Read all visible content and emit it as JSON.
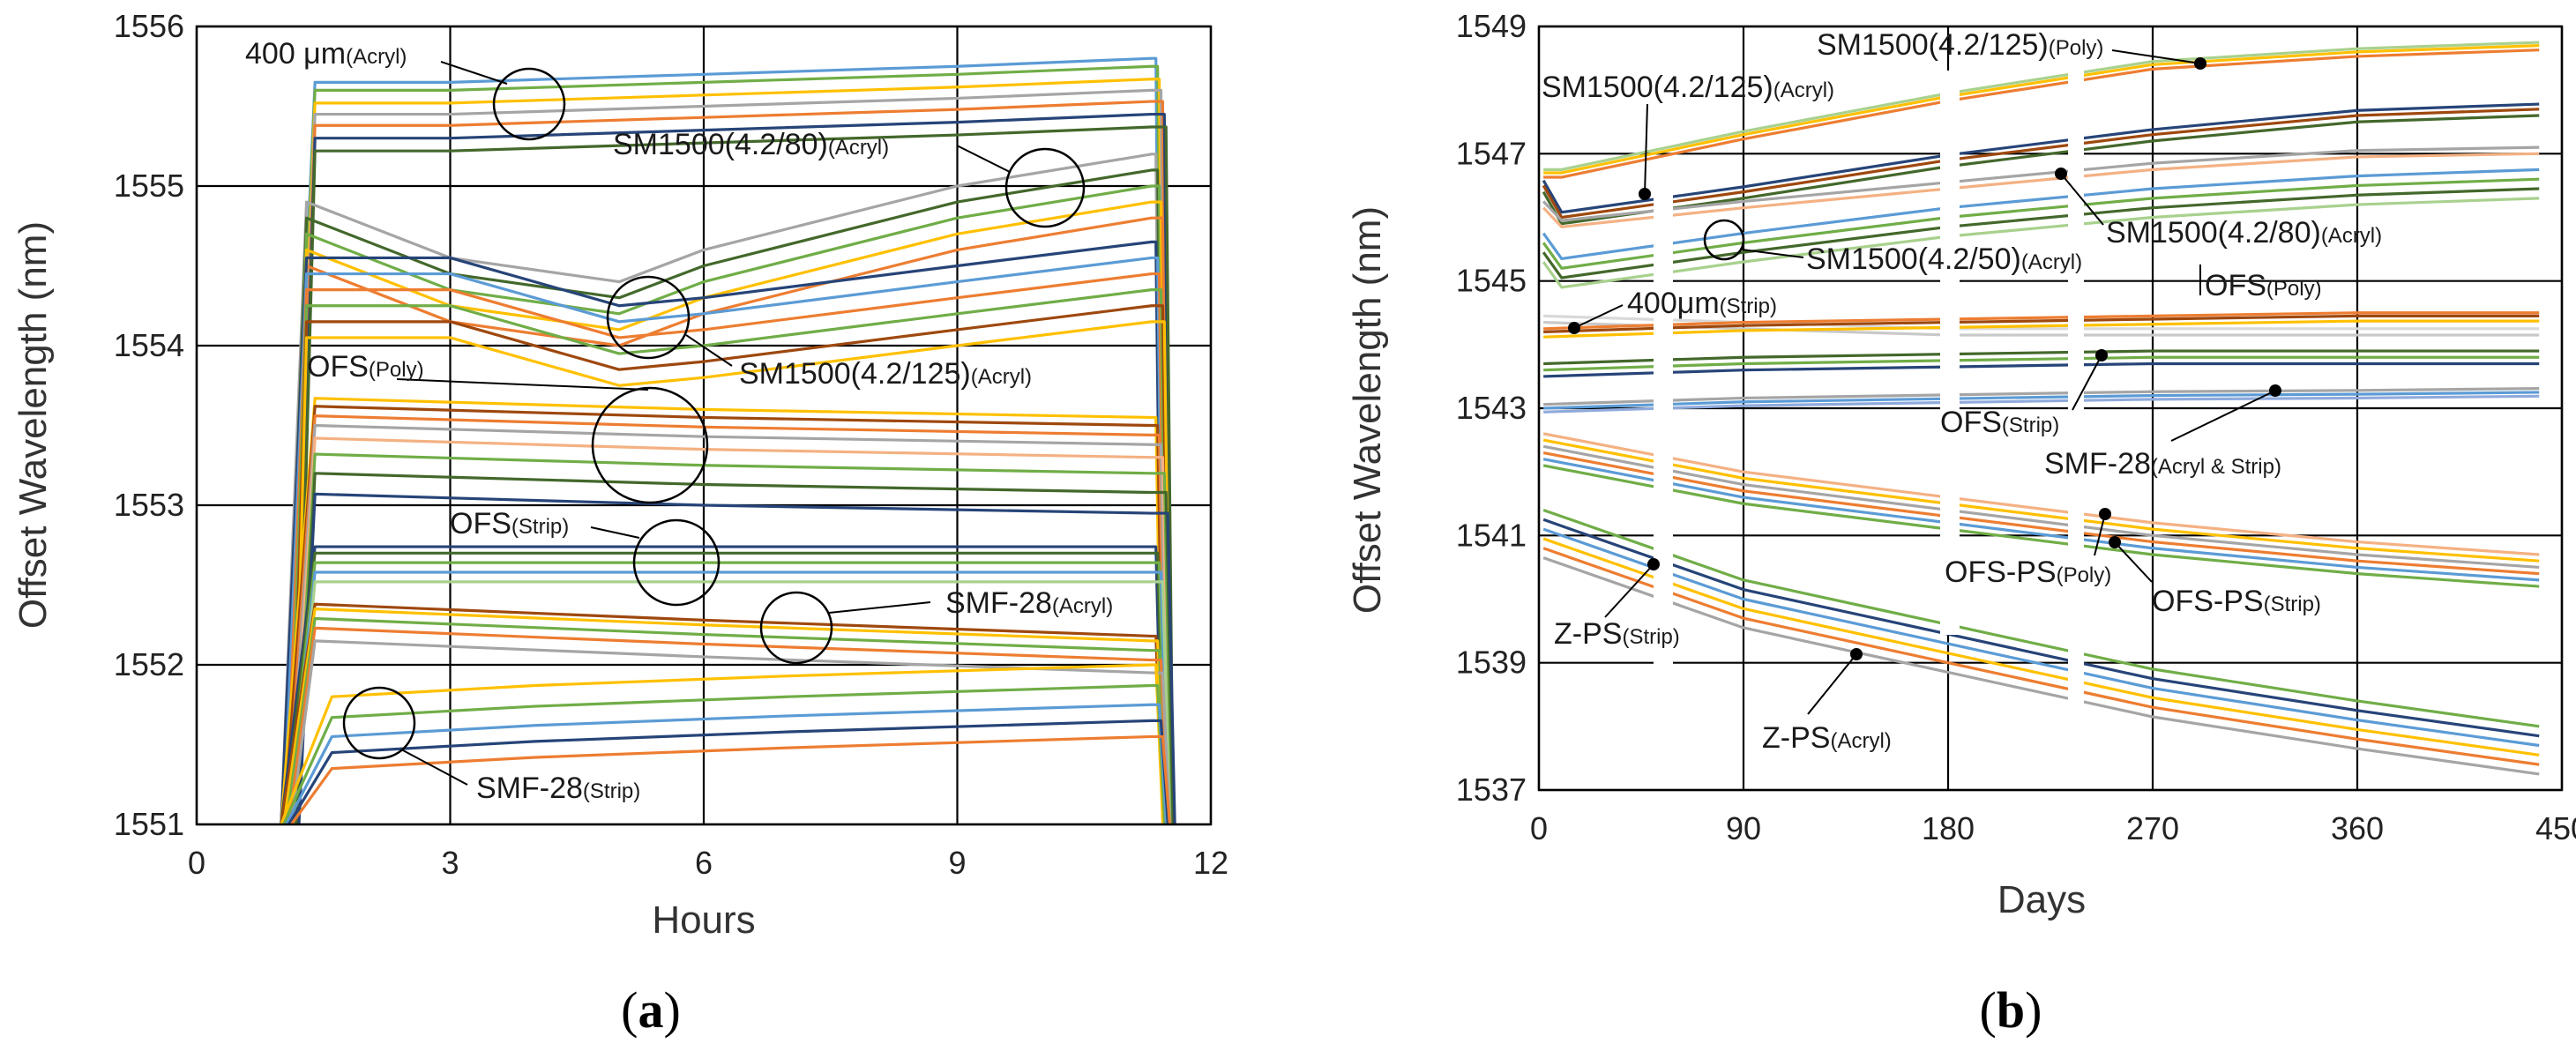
{
  "chart_data": [
    {
      "panel": "(a)",
      "panel_letter": "a",
      "type": "line",
      "xlabel": "Hours",
      "ylabel": "Offset Wavelength (nm)",
      "xlim": [
        0,
        12
      ],
      "ylim": [
        1551,
        1556
      ],
      "xticks": [
        "0",
        "3",
        "6",
        "9",
        "12"
      ],
      "yticks": [
        "1551",
        "1552",
        "1553",
        "1554",
        "1555",
        "1556"
      ],
      "grid": true,
      "legend": "none (inline annotations)",
      "annotations": [
        {
          "main": "400 μm",
          "sub": "(Acryl)"
        },
        {
          "main": "SM1500(4.2/80)",
          "sub": "(Acryl)"
        },
        {
          "main": "SM1500(4.2/125)",
          "sub": "(Acryl)"
        },
        {
          "main": "OFS",
          "sub": "(Poly)"
        },
        {
          "main": "OFS",
          "sub": "(Strip)"
        },
        {
          "main": "SMF-28",
          "sub": "(Acryl)"
        },
        {
          "main": "SMF-28",
          "sub": "(Strip)"
        }
      ],
      "groups": [
        {
          "name": "400 μm (Acryl)",
          "points": [
            [
              1.4,
              1555.6
            ],
            [
              3,
              1555.6
            ],
            [
              6,
              1555.65
            ],
            [
              9,
              1555.7
            ],
            [
              11.3,
              1555.75
            ]
          ],
          "offsets": [
            0.05,
            0,
            -0.08,
            -0.15,
            -0.22,
            -0.3,
            -0.38
          ],
          "colors": [
            "#5b9bd5",
            "#70ad47",
            "#ffc000",
            "#a5a5a5",
            "#ed7d31",
            "#264478",
            "#43682b"
          ]
        },
        {
          "name": "SM1500(4.2/80) (Acryl)",
          "points": [
            [
              1.3,
              1554.8
            ],
            [
              3,
              1554.45
            ],
            [
              5,
              1554.3
            ],
            [
              6,
              1554.5
            ],
            [
              9,
              1554.9
            ],
            [
              11.3,
              1555.1
            ]
          ],
          "offsets": [
            0.1,
            0,
            -0.1,
            -0.2,
            -0.3
          ],
          "colors": [
            "#a5a5a5",
            "#43682b",
            "#70ad47",
            "#ffc000",
            "#ed7d31"
          ]
        },
        {
          "name": "SM1500(4.2/125) (Acryl)",
          "points": [
            [
              1.3,
              1554.35
            ],
            [
              3,
              1554.35
            ],
            [
              5,
              1554.05
            ],
            [
              6,
              1554.1
            ],
            [
              9,
              1554.3
            ],
            [
              11.3,
              1554.45
            ]
          ],
          "offsets": [
            0.2,
            0.1,
            0,
            -0.1,
            -0.2,
            -0.3
          ],
          "colors": [
            "#264478",
            "#5b9bd5",
            "#ed7d31",
            "#70ad47",
            "#9e480e",
            "#ffc000"
          ]
        },
        {
          "name": "OFS (Poly)",
          "points": [
            [
              1.4,
              1553.62
            ],
            [
              6,
              1553.55
            ],
            [
              11.3,
              1553.5
            ]
          ],
          "offsets": [
            0.05,
            0,
            -0.06,
            -0.12,
            -0.2,
            -0.3,
            -0.42,
            -0.55
          ],
          "colors": [
            "#ffc000",
            "#9e480e",
            "#ed7d31",
            "#a5a5a5",
            "#f4b183",
            "#70ad47",
            "#43682b",
            "#264478"
          ]
        },
        {
          "name": "OFS (Strip)",
          "points": [
            [
              1.4,
              1552.72
            ],
            [
              6,
              1552.72
            ],
            [
              11.3,
              1552.72
            ]
          ],
          "offsets": [
            0.02,
            -0.02,
            -0.08,
            -0.14,
            -0.2
          ],
          "colors": [
            "#264478",
            "#43682b",
            "#70ad47",
            "#5b9bd5",
            "#a9d18e"
          ]
        },
        {
          "name": "SMF-28 (Acryl)",
          "points": [
            [
              1.4,
              1552.35
            ],
            [
              6,
              1552.25
            ],
            [
              11.3,
              1552.15
            ]
          ],
          "offsets": [
            0.03,
            0,
            -0.06,
            -0.12,
            -0.2
          ],
          "colors": [
            "#9e480e",
            "#ffc000",
            "#70ad47",
            "#ed7d31",
            "#a5a5a5"
          ]
        },
        {
          "name": "SMF-28 (Strip)",
          "points": [
            [
              1.6,
              1551.55
            ],
            [
              4,
              1551.62
            ],
            [
              7,
              1551.68
            ],
            [
              11.3,
              1551.75
            ]
          ],
          "offsets": [
            0.25,
            0.12,
            0,
            -0.1,
            -0.2
          ],
          "colors": [
            "#ffc000",
            "#70ad47",
            "#5b9bd5",
            "#264478",
            "#ed7d31"
          ]
        }
      ]
    },
    {
      "panel": "(b)",
      "panel_letter": "b",
      "type": "line",
      "xlabel": "Days",
      "ylabel": "Offset Wavelength (nm)",
      "xlim": [
        0,
        450
      ],
      "ylim": [
        1537,
        1549
      ],
      "xticks": [
        "0",
        "90",
        "180",
        "270",
        "360",
        "450"
      ],
      "yticks": [
        "1537",
        "1539",
        "1541",
        "1543",
        "1545",
        "1547",
        "1549"
      ],
      "grid": true,
      "legend": "none (inline annotations)",
      "annotations": [
        {
          "main": "SM1500(4.2/125)",
          "sub": "(Poly)"
        },
        {
          "main": "SM1500(4.2/125)",
          "sub": "(Acryl)"
        },
        {
          "main": "SM1500(4.2/80)",
          "sub": "(Acryl)"
        },
        {
          "main": "SM1500(4.2/50)",
          "sub": "(Acryl)"
        },
        {
          "main": "400μm",
          "sub": "(Strip)"
        },
        {
          "main": "OFS",
          "sub": "(Poly)"
        },
        {
          "main": "OFS",
          "sub": "(Strip)"
        },
        {
          "main": "SMF-28",
          "sub": "(Acryl & Strip)"
        },
        {
          "main": "OFS-PS",
          "sub": "(Poly)"
        },
        {
          "main": "OFS-PS",
          "sub": "(Strip)"
        },
        {
          "main": "Z-PS",
          "sub": "(Strip)"
        },
        {
          "main": "Z-PS",
          "sub": "(Acryl)"
        }
      ],
      "groups": [
        {
          "name": "SM1500(4.2/125) (Poly)",
          "points": [
            [
              2,
              1546.7
            ],
            [
              10,
              1546.7
            ],
            [
              90,
              1547.3
            ],
            [
              180,
              1547.9
            ],
            [
              270,
              1548.4
            ],
            [
              360,
              1548.6
            ],
            [
              440,
              1548.7
            ]
          ],
          "offsets": [
            0.05,
            0,
            -0.07
          ],
          "colors": [
            "#a9d18e",
            "#ffc000",
            "#ed7d31"
          ]
        },
        {
          "name": "SM1500(4.2/125) (Acryl)",
          "points": [
            [
              2,
              1546.5
            ],
            [
              10,
              1546.0
            ],
            [
              90,
              1546.4
            ],
            [
              180,
              1546.9
            ],
            [
              270,
              1547.3
            ],
            [
              360,
              1547.6
            ],
            [
              440,
              1547.7
            ]
          ],
          "offsets": [
            0.08,
            0,
            -0.1
          ],
          "colors": [
            "#264478",
            "#9e480e",
            "#43682b"
          ]
        },
        {
          "name": "SM1500(4.2/80) (Acryl)",
          "points": [
            [
              2,
              1546.2
            ],
            [
              10,
              1545.9
            ],
            [
              90,
              1546.2
            ],
            [
              180,
              1546.5
            ],
            [
              270,
              1546.8
            ],
            [
              360,
              1547.0
            ],
            [
              440,
              1547.05
            ]
          ],
          "offsets": [
            0.05,
            -0.05
          ],
          "colors": [
            "#a5a5a5",
            "#f4b183"
          ]
        },
        {
          "name": "SM1500(4.2/50) (Acryl)",
          "points": [
            [
              2,
              1545.6
            ],
            [
              10,
              1545.2
            ],
            [
              90,
              1545.6
            ],
            [
              180,
              1546.0
            ],
            [
              270,
              1546.3
            ],
            [
              360,
              1546.5
            ],
            [
              440,
              1546.6
            ]
          ],
          "offsets": [
            0.15,
            0,
            -0.15,
            -0.3
          ],
          "colors": [
            "#5b9bd5",
            "#70ad47",
            "#43682b",
            "#a9d18e"
          ]
        },
        {
          "name": "400μm (Strip)",
          "points": [
            [
              2,
              1544.4
            ],
            [
              90,
              1544.3
            ],
            [
              180,
              1544.2
            ],
            [
              270,
              1544.2
            ],
            [
              360,
              1544.2
            ],
            [
              440,
              1544.2
            ]
          ],
          "offsets": [
            0.05,
            -0.05
          ],
          "colors": [
            "#d9d9d9",
            "#c9c9c9"
          ]
        },
        {
          "name": "OFS (Poly)",
          "points": [
            [
              2,
              1544.2
            ],
            [
              90,
              1544.3
            ],
            [
              180,
              1544.35
            ],
            [
              270,
              1544.4
            ],
            [
              360,
              1544.45
            ],
            [
              440,
              1544.45
            ]
          ],
          "offsets": [
            0.05,
            0,
            -0.08
          ],
          "colors": [
            "#ed7d31",
            "#9e480e",
            "#ffc000"
          ]
        },
        {
          "name": "OFS (Strip)",
          "points": [
            [
              2,
              1543.6
            ],
            [
              90,
              1543.7
            ],
            [
              180,
              1543.75
            ],
            [
              270,
              1543.8
            ],
            [
              360,
              1543.8
            ],
            [
              440,
              1543.8
            ]
          ],
          "offsets": [
            0.1,
            0,
            -0.1
          ],
          "colors": [
            "#43682b",
            "#70ad47",
            "#264478"
          ]
        },
        {
          "name": "SMF-28 (Acryl & Strip)",
          "points": [
            [
              2,
              1543.0
            ],
            [
              90,
              1543.1
            ],
            [
              180,
              1543.15
            ],
            [
              270,
              1543.2
            ],
            [
              360,
              1543.22
            ],
            [
              440,
              1543.25
            ]
          ],
          "offsets": [
            0.06,
            0,
            -0.06
          ],
          "colors": [
            "#a5a5a5",
            "#5b9bd5",
            "#8faadc"
          ]
        },
        {
          "name": "OFS-PS",
          "points": [
            [
              2,
              1542.4
            ],
            [
              90,
              1541.8
            ],
            [
              180,
              1541.4
            ],
            [
              270,
              1541.0
            ],
            [
              360,
              1540.7
            ],
            [
              440,
              1540.5
            ]
          ],
          "offsets": [
            0.2,
            0.1,
            0,
            -0.1,
            -0.2,
            -0.3
          ],
          "colors": [
            "#f4b183",
            "#ffc000",
            "#a5a5a5",
            "#ed7d31",
            "#5b9bd5",
            "#70ad47"
          ]
        },
        {
          "name": "Z-PS",
          "points": [
            [
              2,
              1541.1
            ],
            [
              90,
              1540.0
            ],
            [
              180,
              1539.3
            ],
            [
              270,
              1538.6
            ],
            [
              360,
              1538.1
            ],
            [
              440,
              1537.7
            ]
          ],
          "offsets": [
            0.3,
            0.15,
            0,
            -0.15,
            -0.3,
            -0.45
          ],
          "colors": [
            "#70ad47",
            "#264478",
            "#5b9bd5",
            "#ffc000",
            "#ed7d31",
            "#a5a5a5"
          ]
        }
      ]
    }
  ]
}
